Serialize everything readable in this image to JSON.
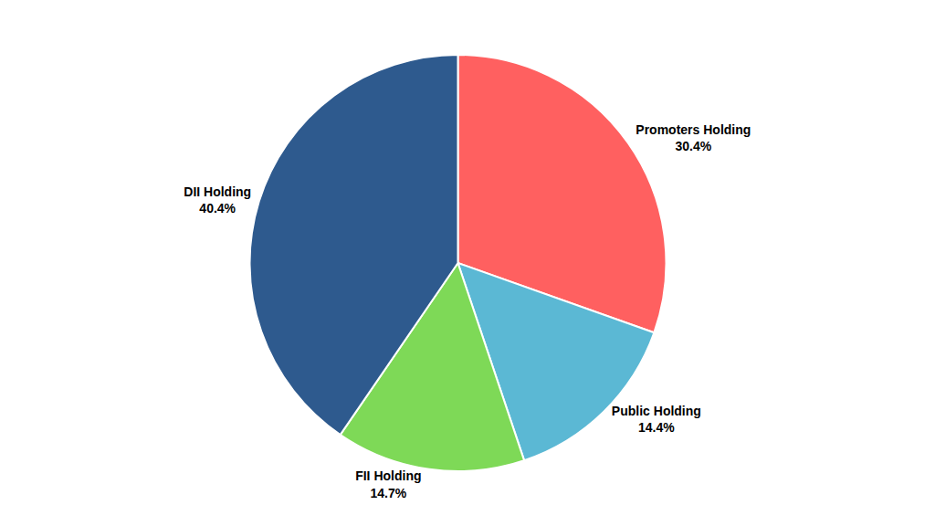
{
  "chart_data": {
    "type": "pie",
    "categories": [
      "Promoters Holding",
      "Public Holding",
      "FII Holding",
      "DII Holding"
    ],
    "values": [
      30.4,
      14.4,
      14.7,
      40.4
    ],
    "value_labels": [
      "30.4%",
      "14.4%",
      "14.7%",
      "40.4%"
    ],
    "colors": [
      "#FF6060",
      "#5BB8D4",
      "#7ED957",
      "#2E5A8E"
    ],
    "data_labels": true,
    "legend": false
  }
}
